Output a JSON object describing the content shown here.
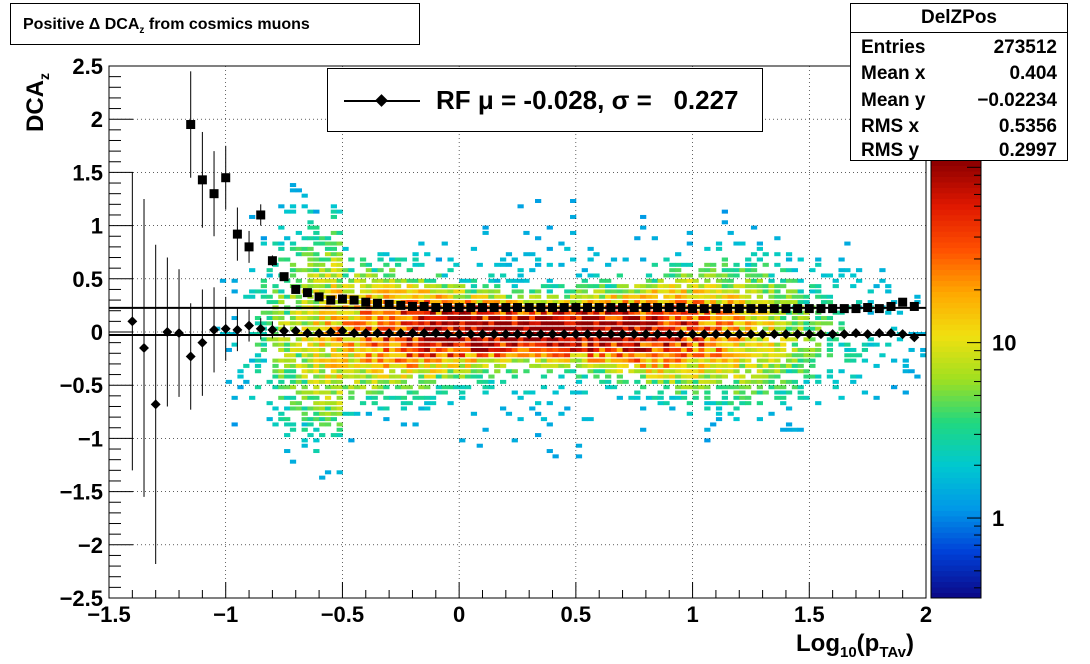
{
  "title": {
    "prefix": "Positive Δ DCA",
    "sub": "z",
    "suffix": "  from cosmics muons"
  },
  "stats": {
    "name": "DelZPos",
    "rows": [
      {
        "label": "Entries",
        "value": "273512"
      },
      {
        "label": "Mean x",
        "value": "0.404"
      },
      {
        "label": "Mean y",
        "value": "−0.02234"
      },
      {
        "label": "RMS x",
        "value": "0.5356"
      },
      {
        "label": "RMS y",
        "value": "0.2997"
      }
    ]
  },
  "legend": {
    "text": "RF μ = -0.028, σ =   0.227"
  },
  "axis_labels": {
    "y_main": "DCA",
    "y_sub": "z",
    "x_main": "Log",
    "x_sub1": "10",
    "x_mid": "(p",
    "x_sub2": "TAv",
    "x_end": ")"
  },
  "colors": {
    "palette": [
      "#0b0b8a",
      "#0040d8",
      "#0098e8",
      "#00c8d0",
      "#20d880",
      "#a0e020",
      "#f0e010",
      "#ffa800",
      "#ff5000",
      "#e01800",
      "#900000"
    ],
    "markers": "#000000"
  },
  "chart_data": {
    "type": "heatmap",
    "title": "Positive Δ DCA z  from cosmics muons",
    "xlabel": "Log10(pTAv)",
    "ylabel": "DCAz",
    "xlim": [
      -1.5,
      2
    ],
    "ylim": [
      -2.5,
      2.5
    ],
    "x_ticks": [
      "−1.5",
      "−1",
      "−0.5",
      "0",
      "0.5",
      "1",
      "1.5",
      "2"
    ],
    "y_ticks": [
      "−2.5",
      "−2",
      "−1.5",
      "−1",
      "−0.5",
      "0",
      "0.5",
      "1",
      "1.5",
      "2",
      "2.5"
    ],
    "colorbar": {
      "scale": "log",
      "tick_labels": [
        "1",
        "10"
      ],
      "tick_values": [
        1,
        10
      ]
    },
    "grid": true,
    "x_bin_centers": [
      -1.4,
      -1.35,
      -1.3,
      -1.25,
      -1.2,
      -1.15,
      -1.1,
      -1.05,
      -1.0,
      -0.95,
      -0.9,
      -0.85,
      -0.8,
      -0.75,
      -0.7,
      -0.65,
      -0.6,
      -0.55,
      -0.5,
      -0.45,
      -0.4,
      -0.35,
      -0.3,
      -0.25,
      -0.2,
      -0.15,
      -0.1,
      -0.05,
      0.0,
      0.05,
      0.1,
      0.15,
      0.2,
      0.25,
      0.3,
      0.35,
      0.4,
      0.45,
      0.5,
      0.55,
      0.6,
      0.65,
      0.7,
      0.75,
      0.8,
      0.85,
      0.9,
      0.95,
      1.0,
      1.05,
      1.1,
      1.15,
      1.2,
      1.25,
      1.3,
      1.35,
      1.4,
      1.45,
      1.5,
      1.55,
      1.6,
      1.65,
      1.7,
      1.75,
      1.8,
      1.85,
      1.9,
      1.95
    ],
    "series": [
      {
        "name": "RF μ = -0.028, σ =   0.227",
        "marker": "diamond",
        "values": [
          0.1,
          -0.15,
          -0.68,
          0.0,
          -0.01,
          -0.23,
          -0.1,
          0.02,
          0.03,
          0.02,
          0.06,
          0.03,
          0.02,
          0.01,
          0.01,
          -0.01,
          -0.01,
          0.0,
          0.01,
          -0.01,
          -0.01,
          -0.01,
          -0.01,
          -0.01,
          -0.01,
          -0.01,
          -0.01,
          -0.02,
          -0.02,
          -0.02,
          -0.02,
          -0.02,
          -0.02,
          -0.02,
          -0.02,
          -0.02,
          -0.02,
          -0.02,
          -0.02,
          -0.02,
          -0.02,
          -0.02,
          -0.02,
          -0.02,
          -0.02,
          -0.02,
          -0.02,
          -0.02,
          -0.02,
          -0.02,
          -0.02,
          -0.02,
          -0.02,
          -0.02,
          -0.02,
          -0.02,
          -0.02,
          -0.02,
          -0.02,
          -0.02,
          -0.02,
          -0.02,
          -0.01,
          -0.02,
          -0.01,
          -0.01,
          -0.02,
          -0.05
        ],
        "errors": [
          1.4,
          1.4,
          1.5,
          0.7,
          0.6,
          0.5,
          0.5,
          0.4,
          0.3,
          0.2,
          0.15,
          0.1,
          0.08,
          0.06,
          0.04,
          0.03,
          0.02,
          0.02,
          0.02,
          0.01,
          0.01,
          0.01,
          0.01,
          0.01,
          0.01,
          0.01,
          0.01,
          0.01,
          0.01,
          0.01,
          0.01,
          0.01,
          0.01,
          0.01,
          0.01,
          0.01,
          0.01,
          0.01,
          0.01,
          0.01,
          0.01,
          0.01,
          0.01,
          0.01,
          0.01,
          0.01,
          0.01,
          0.01,
          0.01,
          0.01,
          0.01,
          0.01,
          0.01,
          0.01,
          0.01,
          0.01,
          0.01,
          0.01,
          0.01,
          0.01,
          0.02,
          0.02,
          0.02,
          0.02,
          0.02,
          0.02,
          0.03,
          0.03
        ],
        "fit_line": -0.028
      },
      {
        "marker": "square",
        "values": [
          null,
          null,
          null,
          null,
          null,
          1.95,
          1.43,
          1.3,
          1.45,
          0.92,
          0.8,
          1.1,
          0.67,
          0.52,
          0.4,
          0.37,
          0.33,
          0.3,
          0.31,
          0.3,
          0.28,
          0.27,
          0.26,
          0.25,
          0.24,
          0.24,
          0.23,
          0.23,
          0.23,
          0.23,
          0.23,
          0.23,
          0.23,
          0.23,
          0.23,
          0.23,
          0.23,
          0.23,
          0.23,
          0.23,
          0.23,
          0.23,
          0.23,
          0.23,
          0.23,
          0.23,
          0.23,
          0.23,
          0.22,
          0.22,
          0.22,
          0.22,
          0.22,
          0.22,
          0.22,
          0.22,
          0.22,
          0.22,
          0.22,
          0.22,
          0.22,
          0.22,
          0.22,
          0.23,
          0.22,
          0.24,
          0.28,
          0.24
        ],
        "errors": [
          0,
          0,
          0,
          0,
          0,
          0.5,
          0.45,
          0.4,
          0.3,
          0.25,
          0.15,
          0.1,
          0.05,
          0.03,
          0.02,
          0.01,
          0.01,
          0.01,
          0.01,
          0.01,
          0.01,
          0.01,
          0.01,
          0.01,
          0.01,
          0.01,
          0.01,
          0.01,
          0.01,
          0.01,
          0.01,
          0.01,
          0.01,
          0.01,
          0.01,
          0.01,
          0.01,
          0.01,
          0.01,
          0.01,
          0.01,
          0.01,
          0.01,
          0.01,
          0.01,
          0.01,
          0.01,
          0.01,
          0.01,
          0.01,
          0.01,
          0.01,
          0.01,
          0.01,
          0.01,
          0.01,
          0.01,
          0.01,
          0.01,
          0.01,
          0.01,
          0.01,
          0.01,
          0.01,
          0.01,
          0.02,
          0.02,
          0.02
        ],
        "fit_line": 0.227
      }
    ]
  }
}
